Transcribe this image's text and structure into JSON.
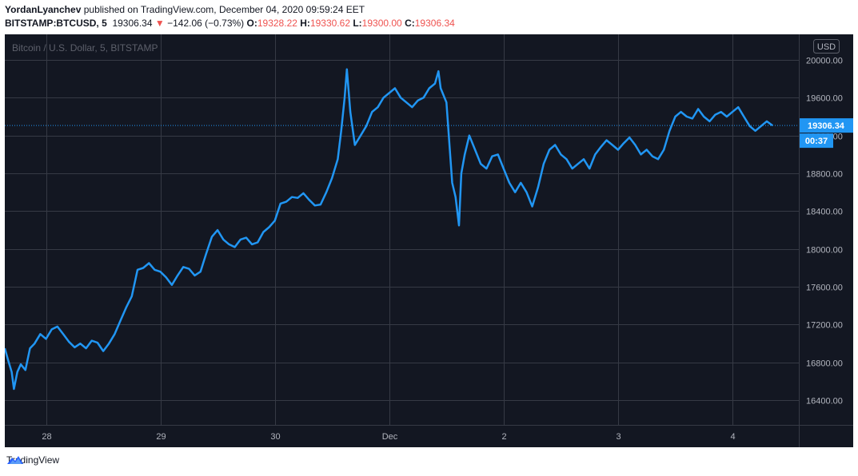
{
  "header": {
    "author": "YordanLyanchev",
    "published_text": "published on TradingView.com, December 04, 2020 09:59:24 EET",
    "symbol": "BITSTAMP:BTCUSD, 5",
    "last_price": "19306.34",
    "change_arrow": "▼",
    "change": "−142.06 (−0.73%)",
    "o_label": "O:",
    "o_value": "19328.22",
    "h_label": "H:",
    "h_value": "19330.62",
    "l_label": "L:",
    "l_value": "19300.00",
    "c_label": "C:",
    "c_value": "19306.34"
  },
  "footer": {
    "brand": "TradingView"
  },
  "colors": {
    "background": "#131722",
    "line": "#2196f3",
    "grid": "#363a45",
    "text": "#b2b5be",
    "down": "#ef5350"
  },
  "chart_data": {
    "type": "line",
    "title": "Bitcoin / U.S. Dollar, 5, BITSTAMP",
    "currency_label": "USD",
    "ylim": [
      16140,
      20270
    ],
    "y_ticks": [
      "16400.00",
      "16800.00",
      "17200.00",
      "17600.00",
      "18000.00",
      "18400.00",
      "18800.00",
      "19200.00",
      "19600.00",
      "20000.00"
    ],
    "x_ticks": [
      {
        "label": "28",
        "t": 1.0
      },
      {
        "label": "29",
        "t": 2.0
      },
      {
        "label": "30",
        "t": 3.0
      },
      {
        "label": "Dec",
        "t": 4.0
      },
      {
        "label": "2",
        "t": 5.0
      },
      {
        "label": "3",
        "t": 6.0
      },
      {
        "label": "4",
        "t": 7.0
      }
    ],
    "xlim": [
      0.64,
      7.58
    ],
    "last_price_label": "19306.34",
    "countdown_label": "00:37",
    "series": [
      {
        "values": [
          [
            0.64,
            16950
          ],
          [
            0.67,
            16820
          ],
          [
            0.7,
            16700
          ],
          [
            0.72,
            16520
          ],
          [
            0.75,
            16700
          ],
          [
            0.78,
            16780
          ],
          [
            0.82,
            16720
          ],
          [
            0.86,
            16950
          ],
          [
            0.9,
            17000
          ],
          [
            0.95,
            17100
          ],
          [
            1.0,
            17050
          ],
          [
            1.05,
            17150
          ],
          [
            1.1,
            17180
          ],
          [
            1.15,
            17100
          ],
          [
            1.2,
            17020
          ],
          [
            1.25,
            16960
          ],
          [
            1.3,
            17000
          ],
          [
            1.35,
            16950
          ],
          [
            1.4,
            17030
          ],
          [
            1.45,
            17010
          ],
          [
            1.5,
            16920
          ],
          [
            1.55,
            17000
          ],
          [
            1.6,
            17100
          ],
          [
            1.65,
            17240
          ],
          [
            1.7,
            17380
          ],
          [
            1.75,
            17500
          ],
          [
            1.8,
            17780
          ],
          [
            1.85,
            17800
          ],
          [
            1.9,
            17850
          ],
          [
            1.95,
            17780
          ],
          [
            2.0,
            17760
          ],
          [
            2.05,
            17700
          ],
          [
            2.1,
            17620
          ],
          [
            2.15,
            17720
          ],
          [
            2.2,
            17810
          ],
          [
            2.25,
            17790
          ],
          [
            2.3,
            17720
          ],
          [
            2.35,
            17760
          ],
          [
            2.4,
            17950
          ],
          [
            2.45,
            18130
          ],
          [
            2.5,
            18200
          ],
          [
            2.55,
            18100
          ],
          [
            2.6,
            18050
          ],
          [
            2.65,
            18020
          ],
          [
            2.7,
            18100
          ],
          [
            2.75,
            18120
          ],
          [
            2.8,
            18050
          ],
          [
            2.85,
            18070
          ],
          [
            2.9,
            18180
          ],
          [
            2.95,
            18230
          ],
          [
            3.0,
            18300
          ],
          [
            3.05,
            18480
          ],
          [
            3.1,
            18500
          ],
          [
            3.15,
            18550
          ],
          [
            3.2,
            18540
          ],
          [
            3.25,
            18590
          ],
          [
            3.3,
            18520
          ],
          [
            3.35,
            18460
          ],
          [
            3.4,
            18470
          ],
          [
            3.45,
            18600
          ],
          [
            3.5,
            18750
          ],
          [
            3.55,
            18950
          ],
          [
            3.58,
            19250
          ],
          [
            3.61,
            19600
          ],
          [
            3.63,
            19900
          ],
          [
            3.66,
            19450
          ],
          [
            3.7,
            19100
          ],
          [
            3.75,
            19200
          ],
          [
            3.8,
            19300
          ],
          [
            3.85,
            19450
          ],
          [
            3.9,
            19500
          ],
          [
            3.95,
            19600
          ],
          [
            4.0,
            19650
          ],
          [
            4.05,
            19700
          ],
          [
            4.1,
            19600
          ],
          [
            4.15,
            19550
          ],
          [
            4.2,
            19500
          ],
          [
            4.25,
            19570
          ],
          [
            4.3,
            19600
          ],
          [
            4.35,
            19700
          ],
          [
            4.4,
            19750
          ],
          [
            4.43,
            19880
          ],
          [
            4.45,
            19700
          ],
          [
            4.5,
            19550
          ],
          [
            4.55,
            18700
          ],
          [
            4.58,
            18550
          ],
          [
            4.61,
            18250
          ],
          [
            4.63,
            18800
          ],
          [
            4.66,
            19000
          ],
          [
            4.7,
            19200
          ],
          [
            4.75,
            19050
          ],
          [
            4.8,
            18900
          ],
          [
            4.85,
            18850
          ],
          [
            4.9,
            18980
          ],
          [
            4.95,
            19000
          ],
          [
            5.0,
            18850
          ],
          [
            5.05,
            18700
          ],
          [
            5.1,
            18600
          ],
          [
            5.15,
            18700
          ],
          [
            5.2,
            18600
          ],
          [
            5.25,
            18450
          ],
          [
            5.3,
            18650
          ],
          [
            5.35,
            18900
          ],
          [
            5.4,
            19050
          ],
          [
            5.45,
            19100
          ],
          [
            5.5,
            19000
          ],
          [
            5.55,
            18950
          ],
          [
            5.6,
            18850
          ],
          [
            5.65,
            18900
          ],
          [
            5.7,
            18950
          ],
          [
            5.75,
            18850
          ],
          [
            5.8,
            19000
          ],
          [
            5.85,
            19080
          ],
          [
            5.9,
            19150
          ],
          [
            5.95,
            19100
          ],
          [
            6.0,
            19050
          ],
          [
            6.05,
            19120
          ],
          [
            6.1,
            19180
          ],
          [
            6.15,
            19100
          ],
          [
            6.2,
            19000
          ],
          [
            6.25,
            19050
          ],
          [
            6.3,
            18980
          ],
          [
            6.35,
            18950
          ],
          [
            6.4,
            19050
          ],
          [
            6.45,
            19250
          ],
          [
            6.5,
            19400
          ],
          [
            6.55,
            19450
          ],
          [
            6.6,
            19400
          ],
          [
            6.65,
            19380
          ],
          [
            6.7,
            19480
          ],
          [
            6.75,
            19400
          ],
          [
            6.8,
            19350
          ],
          [
            6.85,
            19420
          ],
          [
            6.9,
            19450
          ],
          [
            6.95,
            19400
          ],
          [
            7.0,
            19450
          ],
          [
            7.05,
            19500
          ],
          [
            7.1,
            19400
          ],
          [
            7.15,
            19300
          ],
          [
            7.2,
            19250
          ],
          [
            7.25,
            19300
          ],
          [
            7.3,
            19350
          ],
          [
            7.35,
            19306
          ]
        ]
      }
    ]
  }
}
